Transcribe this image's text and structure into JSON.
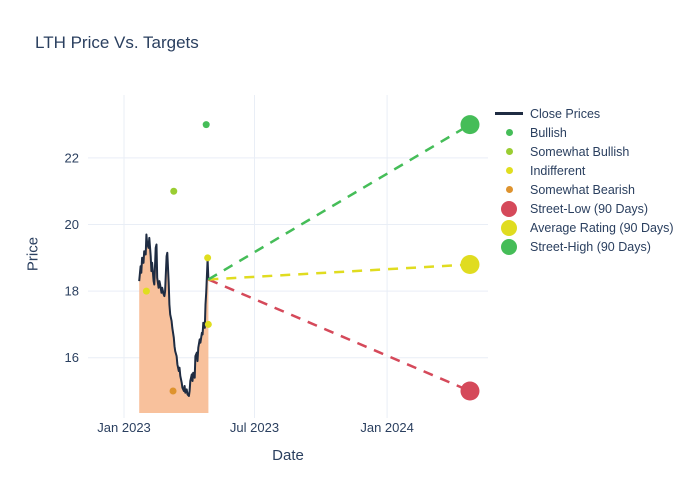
{
  "title": {
    "text": "LTH Price Vs. Targets"
  },
  "colors": {
    "text": "#2a3f5f",
    "grid": "#e9eef6",
    "close_line": "#1f2c42",
    "close_fill": "#f8c19c",
    "bullish": "#45bd58",
    "somewhat_bullish": "#9acd32",
    "indifferent": "#e0de1f",
    "somewhat_bearish": "#de932e",
    "street_low": "#d5495a",
    "average_rating": "#e0dc20",
    "street_high": "#45bd58"
  },
  "legend": {
    "items": [
      {
        "label": "Close Prices",
        "type": "line",
        "color": "#1f2c42"
      },
      {
        "label": "Bullish",
        "type": "dot-small",
        "color": "#45bd58"
      },
      {
        "label": "Somewhat Bullish",
        "type": "dot-small",
        "color": "#9acd32"
      },
      {
        "label": "Indifferent",
        "type": "dot-small",
        "color": "#e0de1f"
      },
      {
        "label": "Somewhat Bearish",
        "type": "dot-small",
        "color": "#de932e"
      },
      {
        "label": "Street-Low (90 Days)",
        "type": "dot-large",
        "color": "#d5495a"
      },
      {
        "label": "Average Rating (90 Days)",
        "type": "dot-large",
        "color": "#e0dc20"
      },
      {
        "label": "Street-High (90 Days)",
        "type": "dot-large",
        "color": "#45bd58"
      }
    ]
  },
  "axes": {
    "x": {
      "title": "Date",
      "range": [
        "2022-11-12",
        "2024-05-20"
      ],
      "ticks": [
        {
          "label": "Jan 2023",
          "date": "2023-01-01"
        },
        {
          "label": "Jul 2023",
          "date": "2023-07-01"
        },
        {
          "label": "Jan 2024",
          "date": "2024-01-01"
        }
      ]
    },
    "y": {
      "title": "Price",
      "ticks": [
        16,
        18,
        20,
        22
      ]
    }
  },
  "chart_data": {
    "type": "line",
    "title": "LTH Price Vs. Targets",
    "xlabel": "Date",
    "ylabel": "Price",
    "x_range": [
      "2022-11-12",
      "2024-05-20"
    ],
    "ylim": [
      14.34,
      23.89
    ],
    "grid": true,
    "legend_position": "right",
    "series": [
      {
        "name": "Close Prices",
        "type": "line",
        "color": "#1f2c42",
        "fill": "tozeroy",
        "fill_color": "#f8c19c",
        "points": [
          [
            "2023-01-22",
            18.3
          ],
          [
            "2023-01-24",
            18.75
          ],
          [
            "2023-01-25",
            18.55
          ],
          [
            "2023-01-26",
            19.0
          ],
          [
            "2023-01-28",
            18.85
          ],
          [
            "2023-01-29",
            19.2
          ],
          [
            "2023-01-31",
            19.1
          ],
          [
            "2023-02-01",
            19.7
          ],
          [
            "2023-02-02",
            19.45
          ],
          [
            "2023-02-04",
            19.3
          ],
          [
            "2023-02-05",
            19.6
          ],
          [
            "2023-02-07",
            19.05
          ],
          [
            "2023-02-08",
            18.6
          ],
          [
            "2023-02-09",
            18.85
          ],
          [
            "2023-02-11",
            18.3
          ],
          [
            "2023-02-12",
            18.2
          ],
          [
            "2023-02-14",
            19.3
          ],
          [
            "2023-02-15",
            19.4
          ],
          [
            "2023-02-16",
            18.4
          ],
          [
            "2023-02-18",
            18.1
          ],
          [
            "2023-02-19",
            18.3
          ],
          [
            "2023-02-20",
            18.2
          ],
          [
            "2023-02-22",
            17.95
          ],
          [
            "2023-02-23",
            18.1
          ],
          [
            "2023-02-25",
            17.9
          ],
          [
            "2023-02-26",
            17.85
          ],
          [
            "2023-02-27",
            18.0
          ],
          [
            "2023-03-01",
            19.05
          ],
          [
            "2023-03-02",
            19.15
          ],
          [
            "2023-03-04",
            18.25
          ],
          [
            "2023-03-05",
            17.6
          ],
          [
            "2023-03-06",
            17.3
          ],
          [
            "2023-03-08",
            17.1
          ],
          [
            "2023-03-09",
            16.9
          ],
          [
            "2023-03-11",
            16.6
          ],
          [
            "2023-03-12",
            16.35
          ],
          [
            "2023-03-13",
            16.2
          ],
          [
            "2023-03-15",
            16.05
          ],
          [
            "2023-03-16",
            15.8
          ],
          [
            "2023-03-18",
            15.6
          ],
          [
            "2023-03-19",
            15.7
          ],
          [
            "2023-03-20",
            15.45
          ],
          [
            "2023-03-22",
            15.25
          ],
          [
            "2023-03-23",
            15.1
          ],
          [
            "2023-03-25",
            15.0
          ],
          [
            "2023-03-26",
            15.15
          ],
          [
            "2023-03-27",
            14.95
          ],
          [
            "2023-03-29",
            15.05
          ],
          [
            "2023-03-30",
            14.9
          ],
          [
            "2023-04-01",
            14.85
          ],
          [
            "2023-04-02",
            15.0
          ],
          [
            "2023-04-03",
            15.3
          ],
          [
            "2023-04-05",
            15.5
          ],
          [
            "2023-04-06",
            15.3
          ],
          [
            "2023-04-07",
            15.55
          ],
          [
            "2023-04-09",
            15.4
          ],
          [
            "2023-04-10",
            16.05
          ],
          [
            "2023-04-12",
            16.15
          ],
          [
            "2023-04-13",
            15.9
          ],
          [
            "2023-04-14",
            16.3
          ],
          [
            "2023-04-16",
            16.55
          ],
          [
            "2023-04-17",
            16.45
          ],
          [
            "2023-04-19",
            16.75
          ],
          [
            "2023-04-20",
            16.7
          ],
          [
            "2023-04-21",
            17.05
          ],
          [
            "2023-04-23",
            16.9
          ],
          [
            "2023-04-24",
            17.6
          ],
          [
            "2023-04-25",
            17.95
          ],
          [
            "2023-04-27",
            18.95
          ],
          [
            "2023-04-28",
            18.35
          ]
        ]
      },
      {
        "name": "Bullish",
        "type": "scatter",
        "color": "#45bd58",
        "size": 7,
        "points": [
          [
            "2023-04-25",
            23.0
          ]
        ]
      },
      {
        "name": "Somewhat Bullish",
        "type": "scatter",
        "color": "#9acd32",
        "size": 7,
        "points": [
          [
            "2023-03-11",
            21.0
          ]
        ]
      },
      {
        "name": "Indifferent",
        "type": "scatter",
        "color": "#e0de1f",
        "size": 7,
        "points": [
          [
            "2023-02-01",
            18.0
          ],
          [
            "2023-04-27",
            19.0
          ],
          [
            "2023-04-28",
            17.0
          ]
        ]
      },
      {
        "name": "Somewhat Bearish",
        "type": "scatter",
        "color": "#de932e",
        "size": 7,
        "points": [
          [
            "2023-03-10",
            15.0
          ]
        ]
      },
      {
        "name": "Street-Low (90 Days)",
        "type": "scatter",
        "color": "#d5495a",
        "size": 19,
        "points": [
          [
            "2024-04-25",
            15.0
          ]
        ],
        "connector_from": [
          "2023-04-28",
          18.35
        ],
        "connector_style": "dashed"
      },
      {
        "name": "Average Rating (90 Days)",
        "type": "scatter",
        "color": "#e0dc20",
        "size": 19,
        "points": [
          [
            "2024-04-25",
            18.8
          ]
        ],
        "connector_from": [
          "2023-04-28",
          18.35
        ],
        "connector_style": "dashed"
      },
      {
        "name": "Street-High (90 Days)",
        "type": "scatter",
        "color": "#45bd58",
        "size": 19,
        "points": [
          [
            "2024-04-25",
            23.0
          ]
        ],
        "connector_from": [
          "2023-04-28",
          18.35
        ],
        "connector_style": "dashed"
      }
    ]
  }
}
